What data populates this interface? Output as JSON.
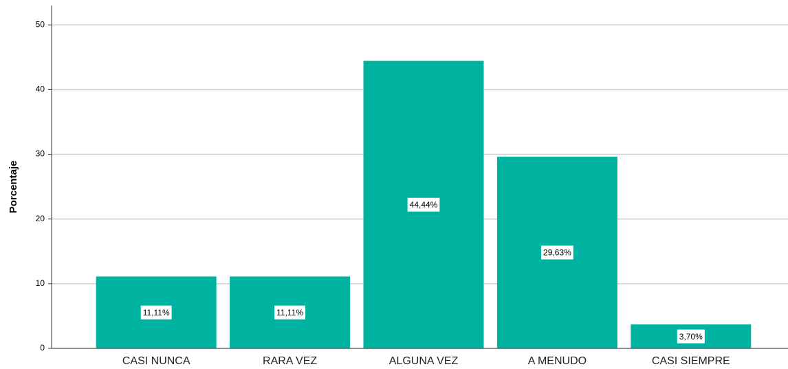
{
  "chart_data": {
    "type": "bar",
    "y_label": "Porcentaje",
    "categories": [
      "CASI NUNCA",
      "RARA VEZ",
      "ALGUNA VEZ",
      "A MENUDO",
      "CASI SIEMPRE"
    ],
    "values": [
      11.11,
      11.11,
      44.44,
      29.63,
      3.7
    ],
    "value_labels": [
      "11,11%",
      "11,11%",
      "44,44%",
      "29,63%",
      "3,70%"
    ],
    "color": "#00b3a1",
    "ylim": [
      0,
      53
    ],
    "yticks": [
      0,
      10,
      20,
      30,
      40,
      50
    ],
    "grid": true
  }
}
